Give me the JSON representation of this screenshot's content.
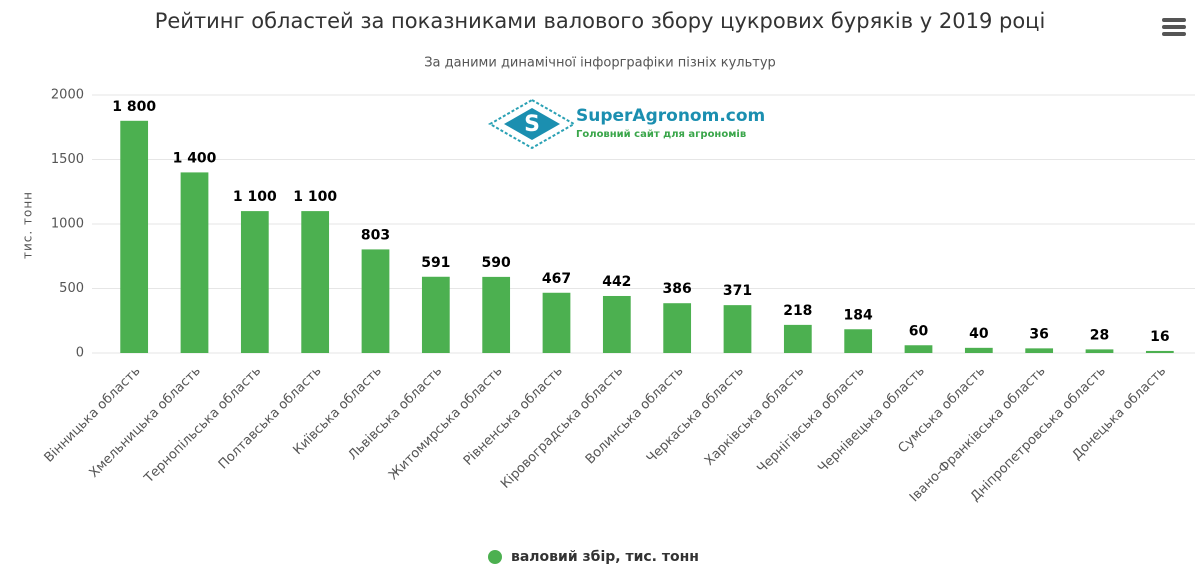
{
  "chart_data": {
    "type": "bar",
    "title": "Рейтинг областей за показниками валового збору цукрових буряків у 2019 році",
    "subtitle": "За даними динамічної інфорграфіки пізніх культур",
    "y_label": "тис. тонн",
    "watermark": {
      "title": "SuperAgronom.com",
      "subtitle": "Головний сайт для агрономів"
    },
    "categories": [
      "Вінницька область",
      "Хмельницька область",
      "Тернопільська область",
      "Полтавська область",
      "Київська область",
      "Львівська область",
      "Житомирська область",
      "Рівненська область",
      "Кіровоградська область",
      "Волинська область",
      "Черкаська область",
      "Харківська область",
      "Чернігівська область",
      "Чернівецька область",
      "Сумська область",
      "Івано-Франківська область",
      "Дніпропетровська область",
      "Донецька область"
    ],
    "series": [
      {
        "name": "валовий збір, тис. тонн",
        "color": "#4cb050",
        "values": [
          1800,
          1400,
          1100,
          1100,
          803,
          591,
          590,
          467,
          442,
          386,
          371,
          218,
          184,
          60,
          40,
          36,
          28,
          16
        ],
        "value_labels": [
          "1 800",
          "1 400",
          "1 100",
          "1 100",
          "803",
          "591",
          "590",
          "467",
          "442",
          "386",
          "371",
          "218",
          "184",
          "60",
          "40",
          "36",
          "28",
          "16"
        ]
      }
    ],
    "ylim": [
      0,
      2000
    ],
    "yticks": [
      0,
      500,
      1000,
      1500,
      2000
    ],
    "grid": true,
    "legend": "bottom"
  }
}
